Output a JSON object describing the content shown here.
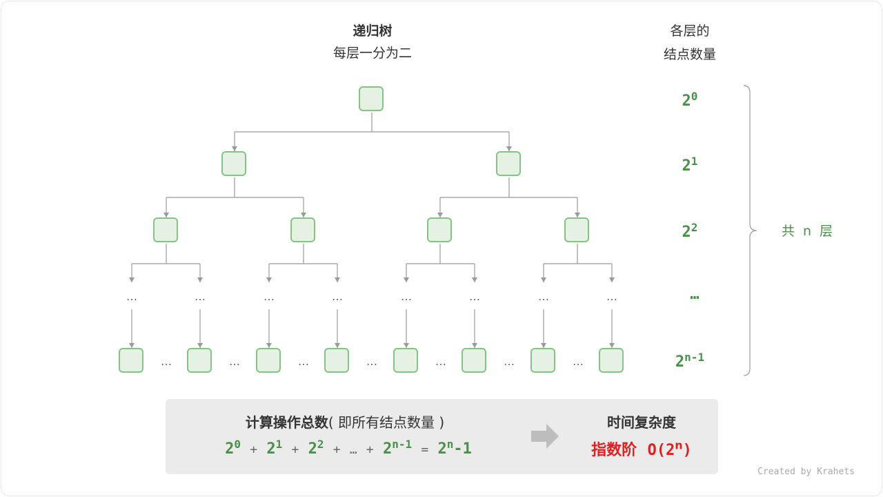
{
  "title": "递归树",
  "subtitle": "每层一分为二",
  "count_header": [
    "各层的",
    "结点数量"
  ],
  "levels": [
    {
      "base": "2",
      "exp": "0"
    },
    {
      "base": "2",
      "exp": "1"
    },
    {
      "base": "2",
      "exp": "2"
    },
    {
      "base": "…",
      "exp": ""
    },
    {
      "base": "2",
      "exp": "n-1"
    }
  ],
  "brace_label": "共 n 层",
  "dots": "…",
  "summary": {
    "title": "计算操作总数",
    "paren": "( 即所有结点数量 )",
    "plus": "+",
    "ellipsis": "…",
    "equals": "=",
    "result_base": "2",
    "result_exp": "n",
    "result_tail": "-1"
  },
  "complexity": {
    "title": "时间复杂度",
    "label": "指数阶",
    "o": "O(2",
    "exp": "n",
    "close": ")"
  },
  "credit": "Created by Krahets",
  "colors": {
    "node_fill": "#e4f1e3",
    "node_border": "#86c185",
    "green": "#4a8f4a",
    "red": "#e02020"
  }
}
